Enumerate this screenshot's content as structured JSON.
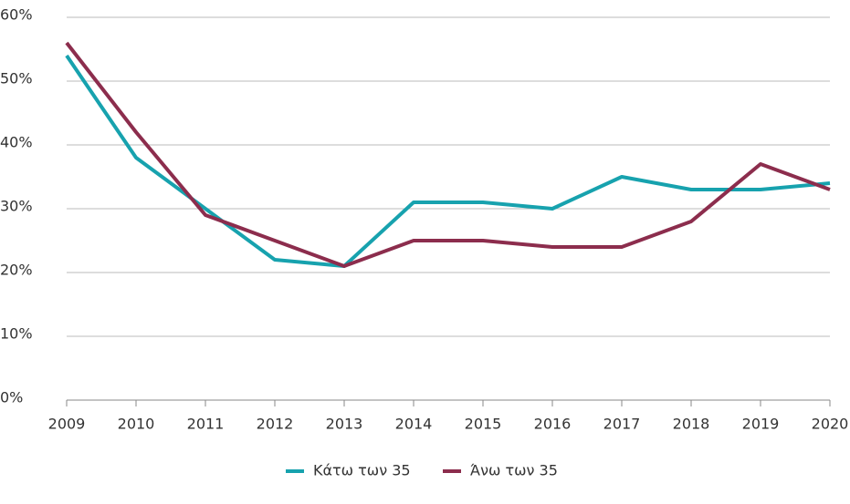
{
  "chart_data": {
    "type": "line",
    "x": [
      2009,
      2010,
      2011,
      2012,
      2013,
      2014,
      2015,
      2016,
      2017,
      2018,
      2019,
      2020
    ],
    "xlim": [
      2009,
      2020
    ],
    "xticks": [
      2009,
      2010,
      2011,
      2012,
      2013,
      2014,
      2015,
      2016,
      2017,
      2018,
      2019,
      2020
    ],
    "ylim": [
      0,
      60
    ],
    "yticks": [
      {
        "value": 0,
        "label": "0%"
      },
      {
        "value": 10,
        "label": "10%"
      },
      {
        "value": 20,
        "label": "20%"
      },
      {
        "value": 30,
        "label": "30%"
      },
      {
        "value": 40,
        "label": "40%"
      },
      {
        "value": 50,
        "label": "50%"
      },
      {
        "value": 60,
        "label": "60%"
      }
    ],
    "grid": true,
    "legend": "bottom",
    "series": [
      {
        "name": "Κάτω των 35",
        "color": "#17a2ae",
        "values": [
          54,
          38,
          30,
          22,
          21,
          31,
          31,
          30,
          35,
          33,
          33,
          34
        ]
      },
      {
        "name": "Άνω των 35",
        "color": "#8c2d4d",
        "values": [
          56,
          42,
          29,
          25,
          21,
          25,
          25,
          24,
          24,
          28,
          37,
          33
        ]
      }
    ]
  }
}
